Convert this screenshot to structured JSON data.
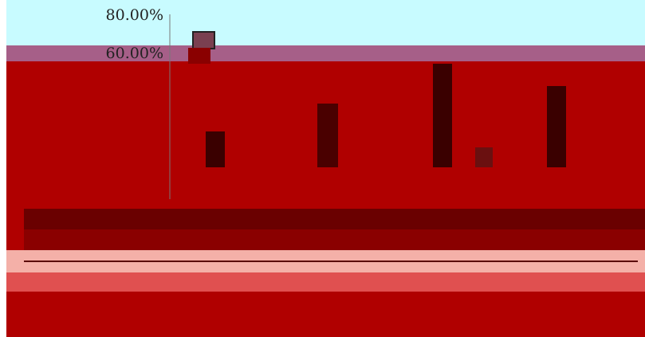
{
  "axis_labels": [
    "80.00%",
    "60.00%"
  ]
}
